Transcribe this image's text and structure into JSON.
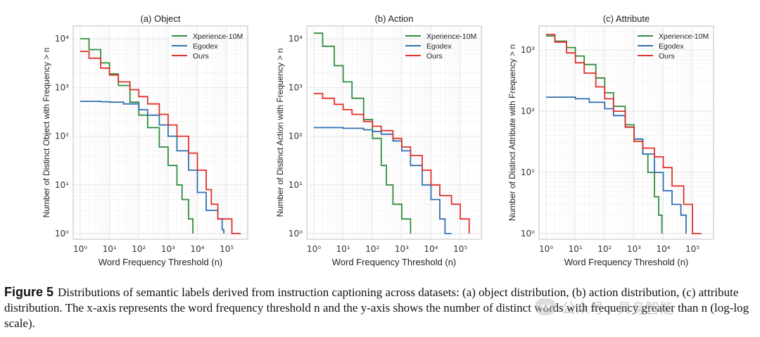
{
  "figure": {
    "caption_label": "Figure 5",
    "caption_text": "Distributions of semantic labels derived from instruction captioning across datasets: (a) object distribution, (b) action distribution, (c) attribute distribution. The x-axis represents the word frequency threshold n and the y-axis shows the number of distinct words with frequency greater than n (log-log scale).",
    "watermark": "公众号 · 具身智能"
  },
  "colors": {
    "Xperience-10M": "#2e8b3e",
    "Egodex": "#2f6fb0",
    "Ours": "#e0302a"
  },
  "chart_data": [
    {
      "type": "line",
      "title": "(a) Object",
      "xlabel": "Word Frequency Threshold (n)",
      "ylabel": "Number of Distinct Object with Frequency > n",
      "x_scale": "log",
      "y_scale": "log",
      "xlim": [
        1,
        300000
      ],
      "ylim": [
        1,
        14000
      ],
      "x_ticks": [
        1,
        10,
        100,
        1000,
        10000,
        100000
      ],
      "y_ticks": [
        1,
        10,
        100,
        1000,
        10000
      ],
      "grid": true,
      "legend": "top-right",
      "series": [
        {
          "name": "Xperience-10M",
          "x": [
            1,
            2,
            5,
            10,
            20,
            50,
            100,
            200,
            500,
            1000,
            2000,
            3000,
            5000,
            7000
          ],
          "y": [
            10000,
            6000,
            3200,
            1900,
            1100,
            500,
            270,
            150,
            60,
            25,
            10,
            5,
            2,
            1
          ]
        },
        {
          "name": "Egodex",
          "x": [
            1,
            5,
            10,
            30,
            100,
            200,
            500,
            1000,
            2000,
            5000,
            10000,
            20000,
            50000,
            70000,
            80000
          ],
          "y": [
            520,
            510,
            500,
            460,
            350,
            270,
            170,
            100,
            50,
            20,
            7,
            3,
            2,
            1.2,
            1
          ]
        },
        {
          "name": "Ours",
          "x": [
            1,
            2,
            5,
            10,
            20,
            50,
            100,
            200,
            500,
            1000,
            2000,
            5000,
            10000,
            20000,
            30000,
            50000,
            100000,
            150000,
            300000
          ],
          "y": [
            5500,
            4000,
            2500,
            1800,
            1300,
            900,
            650,
            460,
            280,
            170,
            100,
            45,
            20,
            8,
            4,
            2,
            2,
            1,
            1
          ]
        }
      ]
    },
    {
      "type": "line",
      "title": "(b) Action",
      "xlabel": "Word Frequency Threshold (n)",
      "ylabel": "Number of Distinct Action with Frequency > n",
      "x_scale": "log",
      "y_scale": "log",
      "xlim": [
        1,
        300000
      ],
      "ylim": [
        1,
        14000
      ],
      "x_ticks": [
        1,
        10,
        100,
        1000,
        10000,
        100000
      ],
      "y_ticks": [
        1,
        10,
        100,
        1000,
        10000
      ],
      "grid": true,
      "legend": "top-right",
      "series": [
        {
          "name": "Xperience-10M",
          "x": [
            1,
            2,
            5,
            10,
            20,
            50,
            100,
            200,
            300,
            500,
            1000,
            2000
          ],
          "y": [
            13000,
            7000,
            2800,
            1300,
            600,
            220,
            90,
            25,
            10,
            4,
            2,
            1
          ]
        },
        {
          "name": "Egodex",
          "x": [
            1,
            10,
            50,
            100,
            200,
            500,
            1000,
            2000,
            5000,
            10000,
            20000,
            30000,
            50000
          ],
          "y": [
            150,
            145,
            135,
            125,
            110,
            80,
            50,
            25,
            10,
            5,
            2,
            1,
            1
          ]
        },
        {
          "name": "Ours",
          "x": [
            1,
            2,
            5,
            10,
            20,
            50,
            100,
            200,
            500,
            1000,
            2000,
            5000,
            10000,
            20000,
            50000,
            100000,
            200000
          ],
          "y": [
            750,
            600,
            450,
            350,
            280,
            200,
            160,
            130,
            90,
            60,
            40,
            20,
            10,
            6,
            4,
            2,
            1
          ]
        }
      ]
    },
    {
      "type": "line",
      "title": "(c) Attribute",
      "xlabel": "Word Frequency Threshold (n)",
      "ylabel": "Number of Distinct Attribute with Frequency > n",
      "x_scale": "log",
      "y_scale": "log",
      "xlim": [
        1,
        300000
      ],
      "ylim": [
        1,
        2000
      ],
      "x_ticks": [
        1,
        10,
        100,
        1000,
        10000,
        100000
      ],
      "y_ticks": [
        1,
        10,
        100,
        1000
      ],
      "grid": true,
      "legend": "top-right",
      "series": [
        {
          "name": "Xperience-10M",
          "x": [
            1,
            2,
            5,
            10,
            20,
            50,
            100,
            200,
            500,
            1000,
            2000,
            3000,
            5000,
            7000,
            9000
          ],
          "y": [
            1700,
            1400,
            1100,
            800,
            580,
            350,
            200,
            120,
            60,
            35,
            20,
            10,
            4,
            2,
            1
          ]
        },
        {
          "name": "Egodex",
          "x": [
            1,
            10,
            30,
            100,
            200,
            500,
            1000,
            2000,
            5000,
            10000,
            20000,
            40000,
            60000
          ],
          "y": [
            170,
            160,
            140,
            110,
            85,
            55,
            35,
            20,
            10,
            5,
            3,
            2,
            1
          ]
        },
        {
          "name": "Ours",
          "x": [
            1,
            2,
            5,
            10,
            20,
            50,
            100,
            200,
            500,
            1000,
            2000,
            5000,
            10000,
            20000,
            50000,
            100000,
            200000
          ],
          "y": [
            1800,
            1350,
            900,
            620,
            420,
            250,
            160,
            100,
            55,
            32,
            25,
            18,
            12,
            6,
            3,
            1,
            1
          ]
        }
      ]
    }
  ]
}
